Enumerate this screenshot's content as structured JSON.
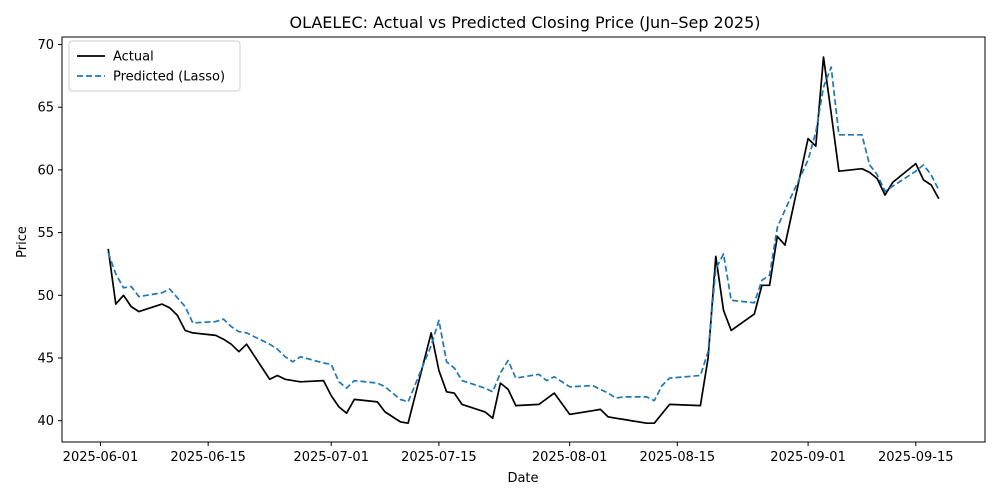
{
  "chart_data": {
    "type": "line",
    "title": "OLAELEC: Actual vs Predicted Closing Price (Jun–Sep 2025)",
    "xlabel": "Date",
    "ylabel": "Price",
    "xlim": [
      "2025-05-27",
      "2025-09-24"
    ],
    "ylim": [
      38.3,
      70.6
    ],
    "xticks": [
      "2025-06-01",
      "2025-06-15",
      "2025-07-01",
      "2025-07-15",
      "2025-08-01",
      "2025-08-15",
      "2025-09-01",
      "2025-09-15"
    ],
    "yticks": [
      40,
      45,
      50,
      55,
      60,
      65,
      70
    ],
    "grid": false,
    "legend_position": "top-left",
    "series": [
      {
        "name": "Actual",
        "color": "#000000",
        "dash": "solid",
        "points": [
          [
            "2025-06-02",
            53.7
          ],
          [
            "2025-06-03",
            49.3
          ],
          [
            "2025-06-04",
            50.0
          ],
          [
            "2025-06-05",
            49.1
          ],
          [
            "2025-06-06",
            48.7
          ],
          [
            "2025-06-09",
            49.3
          ],
          [
            "2025-06-10",
            49.0
          ],
          [
            "2025-06-11",
            48.4
          ],
          [
            "2025-06-12",
            47.2
          ],
          [
            "2025-06-13",
            47.0
          ],
          [
            "2025-06-16",
            46.8
          ],
          [
            "2025-06-17",
            46.5
          ],
          [
            "2025-06-18",
            46.1
          ],
          [
            "2025-06-19",
            45.5
          ],
          [
            "2025-06-20",
            46.1
          ],
          [
            "2025-06-23",
            43.3
          ],
          [
            "2025-06-24",
            43.6
          ],
          [
            "2025-06-25",
            43.3
          ],
          [
            "2025-06-27",
            43.1
          ],
          [
            "2025-06-30",
            43.2
          ],
          [
            "2025-07-01",
            42.0
          ],
          [
            "2025-07-02",
            41.1
          ],
          [
            "2025-07-03",
            40.6
          ],
          [
            "2025-07-04",
            41.7
          ],
          [
            "2025-07-07",
            41.5
          ],
          [
            "2025-07-08",
            40.7
          ],
          [
            "2025-07-10",
            39.9
          ],
          [
            "2025-07-11",
            39.8
          ],
          [
            "2025-07-14",
            47.0
          ],
          [
            "2025-07-15",
            44.0
          ],
          [
            "2025-07-16",
            42.3
          ],
          [
            "2025-07-17",
            42.2
          ],
          [
            "2025-07-18",
            41.3
          ],
          [
            "2025-07-21",
            40.7
          ],
          [
            "2025-07-22",
            40.2
          ],
          [
            "2025-07-23",
            43.0
          ],
          [
            "2025-07-24",
            42.5
          ],
          [
            "2025-07-25",
            41.2
          ],
          [
            "2025-07-28",
            41.3
          ],
          [
            "2025-07-30",
            42.2
          ],
          [
            "2025-08-01",
            40.5
          ],
          [
            "2025-08-04",
            40.8
          ],
          [
            "2025-08-05",
            40.9
          ],
          [
            "2025-08-06",
            40.3
          ],
          [
            "2025-08-07",
            40.2
          ],
          [
            "2025-08-08",
            40.1
          ],
          [
            "2025-08-11",
            39.8
          ],
          [
            "2025-08-12",
            39.8
          ],
          [
            "2025-08-14",
            41.3
          ],
          [
            "2025-08-18",
            41.2
          ],
          [
            "2025-08-19",
            45.0
          ],
          [
            "2025-08-20",
            53.1
          ],
          [
            "2025-08-21",
            48.8
          ],
          [
            "2025-08-22",
            47.2
          ],
          [
            "2025-08-25",
            48.5
          ],
          [
            "2025-08-26",
            50.8
          ],
          [
            "2025-08-27",
            50.8
          ],
          [
            "2025-08-28",
            54.7
          ],
          [
            "2025-08-29",
            54.0
          ],
          [
            "2025-09-01",
            62.5
          ],
          [
            "2025-09-02",
            61.9
          ],
          [
            "2025-09-03",
            69.0
          ],
          [
            "2025-09-04",
            64.5
          ],
          [
            "2025-09-05",
            59.9
          ],
          [
            "2025-09-08",
            60.1
          ],
          [
            "2025-09-09",
            59.8
          ],
          [
            "2025-09-10",
            59.3
          ],
          [
            "2025-09-11",
            58.0
          ],
          [
            "2025-09-12",
            59.0
          ],
          [
            "2025-09-15",
            60.5
          ],
          [
            "2025-09-16",
            59.2
          ],
          [
            "2025-09-17",
            58.8
          ],
          [
            "2025-09-18",
            57.7
          ]
        ]
      },
      {
        "name": "Predicted (Lasso)",
        "color": "#1f77b4",
        "dash": "dashed",
        "points": [
          [
            "2025-06-02",
            53.4
          ],
          [
            "2025-06-03",
            51.7
          ],
          [
            "2025-06-04",
            50.6
          ],
          [
            "2025-06-05",
            50.7
          ],
          [
            "2025-06-06",
            49.9
          ],
          [
            "2025-06-09",
            50.2
          ],
          [
            "2025-06-10",
            50.5
          ],
          [
            "2025-06-11",
            49.8
          ],
          [
            "2025-06-12",
            49.1
          ],
          [
            "2025-06-13",
            47.8
          ],
          [
            "2025-06-16",
            47.9
          ],
          [
            "2025-06-17",
            48.1
          ],
          [
            "2025-06-18",
            47.5
          ],
          [
            "2025-06-19",
            47.1
          ],
          [
            "2025-06-20",
            47.0
          ],
          [
            "2025-06-23",
            46.1
          ],
          [
            "2025-06-24",
            45.7
          ],
          [
            "2025-06-25",
            45.1
          ],
          [
            "2025-06-26",
            44.7
          ],
          [
            "2025-06-27",
            45.1
          ],
          [
            "2025-06-30",
            44.6
          ],
          [
            "2025-07-01",
            44.5
          ],
          [
            "2025-07-02",
            43.1
          ],
          [
            "2025-07-03",
            42.6
          ],
          [
            "2025-07-04",
            43.2
          ],
          [
            "2025-07-07",
            43.0
          ],
          [
            "2025-07-08",
            42.7
          ],
          [
            "2025-07-09",
            42.2
          ],
          [
            "2025-07-10",
            41.7
          ],
          [
            "2025-07-11",
            41.5
          ],
          [
            "2025-07-14",
            46.0
          ],
          [
            "2025-07-15",
            48.0
          ],
          [
            "2025-07-16",
            44.7
          ],
          [
            "2025-07-17",
            44.2
          ],
          [
            "2025-07-18",
            43.2
          ],
          [
            "2025-07-21",
            42.6
          ],
          [
            "2025-07-22",
            42.3
          ],
          [
            "2025-07-23",
            43.8
          ],
          [
            "2025-07-24",
            44.8
          ],
          [
            "2025-07-25",
            43.4
          ],
          [
            "2025-07-28",
            43.7
          ],
          [
            "2025-07-29",
            43.2
          ],
          [
            "2025-07-30",
            43.5
          ],
          [
            "2025-08-01",
            42.7
          ],
          [
            "2025-08-04",
            42.8
          ],
          [
            "2025-08-06",
            42.2
          ],
          [
            "2025-08-07",
            41.8
          ],
          [
            "2025-08-08",
            41.9
          ],
          [
            "2025-08-11",
            41.9
          ],
          [
            "2025-08-12",
            41.6
          ],
          [
            "2025-08-13",
            42.8
          ],
          [
            "2025-08-14",
            43.4
          ],
          [
            "2025-08-18",
            43.6
          ],
          [
            "2025-08-19",
            45.5
          ],
          [
            "2025-08-20",
            52.1
          ],
          [
            "2025-08-21",
            53.3
          ],
          [
            "2025-08-22",
            49.6
          ],
          [
            "2025-08-25",
            49.4
          ],
          [
            "2025-08-26",
            51.2
          ],
          [
            "2025-08-27",
            51.6
          ],
          [
            "2025-08-28",
            55.4
          ],
          [
            "2025-08-29",
            56.8
          ],
          [
            "2025-09-01",
            60.8
          ],
          [
            "2025-09-02",
            63.0
          ],
          [
            "2025-09-03",
            66.6
          ],
          [
            "2025-09-04",
            68.2
          ],
          [
            "2025-09-05",
            62.8
          ],
          [
            "2025-09-08",
            62.8
          ],
          [
            "2025-09-09",
            60.4
          ],
          [
            "2025-09-10",
            59.6
          ],
          [
            "2025-09-11",
            58.3
          ],
          [
            "2025-09-12",
            58.7
          ],
          [
            "2025-09-15",
            59.9
          ],
          [
            "2025-09-16",
            60.4
          ],
          [
            "2025-09-17",
            59.6
          ],
          [
            "2025-09-18",
            58.4
          ]
        ]
      }
    ]
  }
}
